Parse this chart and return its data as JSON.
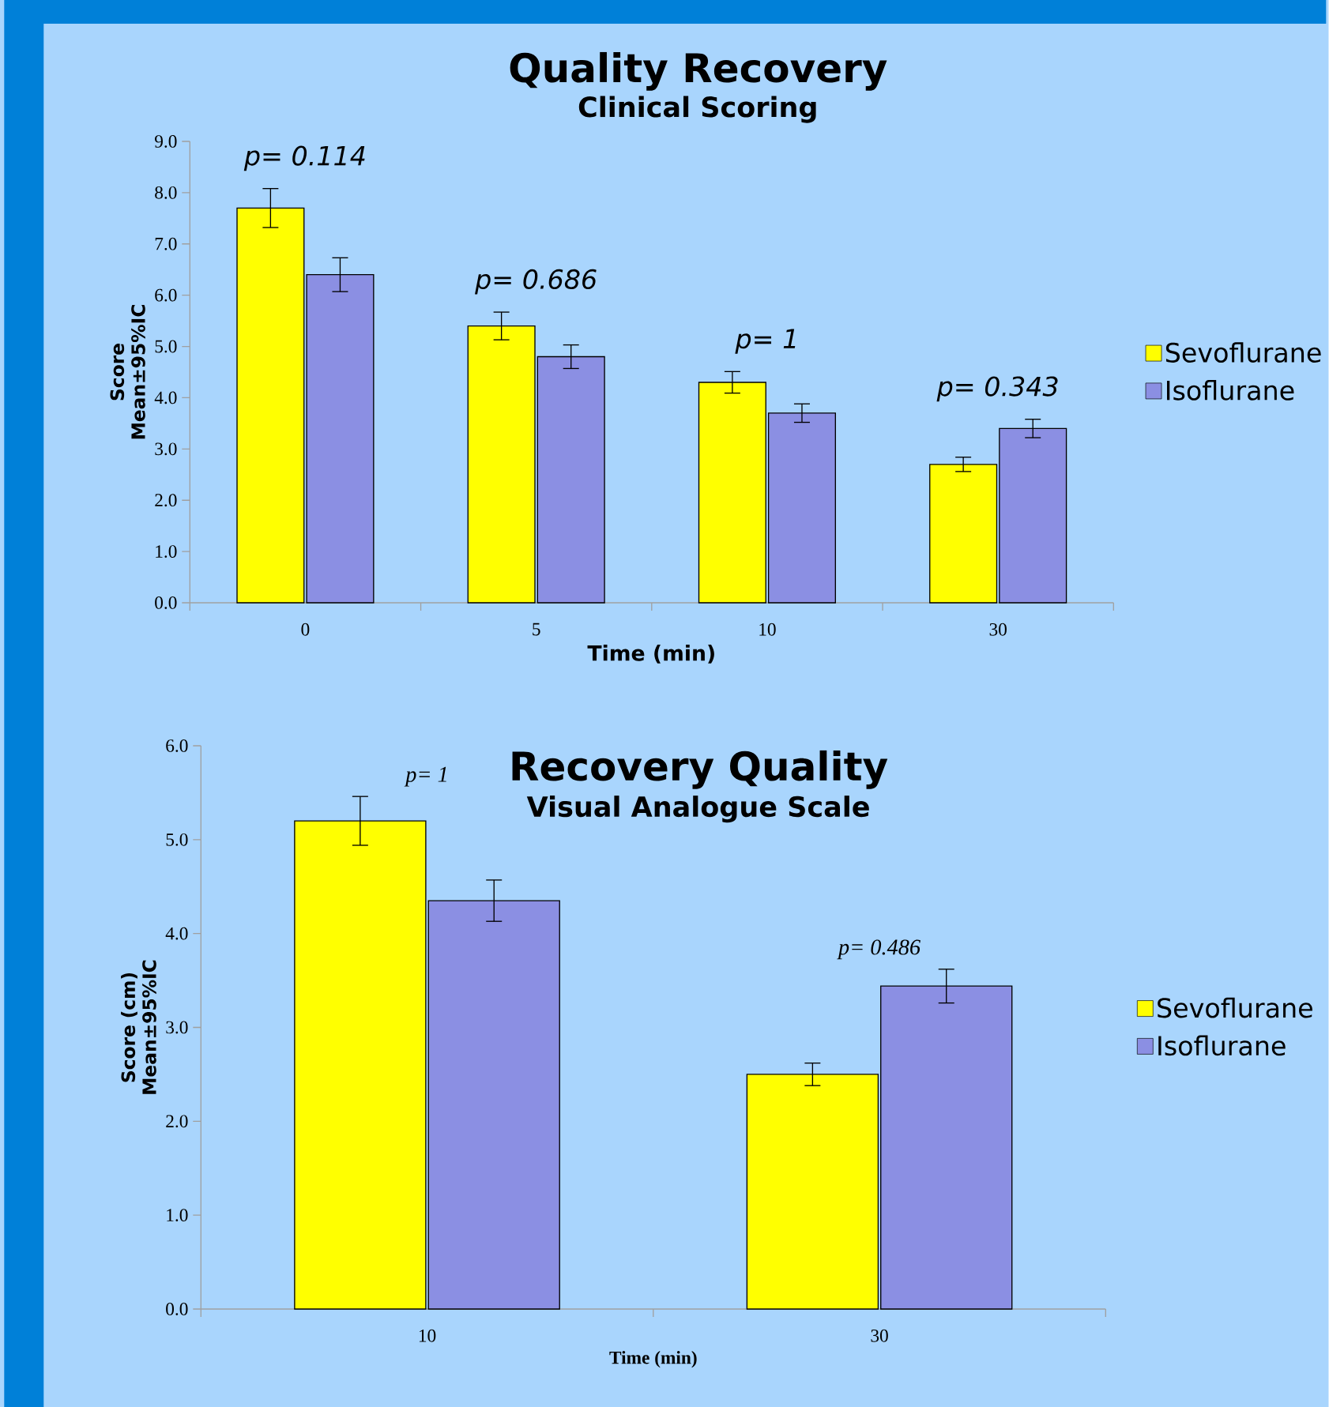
{
  "chart_data": [
    {
      "type": "bar",
      "title": "Quality Recovery",
      "subtitle": "Clinical Scoring",
      "xlabel": "Time (min)",
      "ylabel": "Score Mean±95%IC",
      "categories": [
        "0",
        "5",
        "10",
        "30"
      ],
      "series": [
        {
          "name": "Sevoflurane",
          "color": "#ffff00",
          "values": [
            7.7,
            5.4,
            4.3,
            2.7
          ],
          "errors": [
            0.38,
            0.27,
            0.21,
            0.14
          ]
        },
        {
          "name": "Isoflurane",
          "color": "#8b8fe3",
          "values": [
            6.4,
            4.8,
            3.7,
            3.4
          ],
          "errors": [
            0.33,
            0.23,
            0.18,
            0.18
          ]
        }
      ],
      "ylim": [
        0,
        9
      ],
      "yticks": [
        {
          "value": 0,
          "label": "0.0"
        },
        {
          "value": 1,
          "label": "1.0"
        },
        {
          "value": 2,
          "label": "2.0"
        },
        {
          "value": 3,
          "label": "3.0"
        },
        {
          "value": 4,
          "label": "4.0"
        },
        {
          "value": 5,
          "label": "5.0"
        },
        {
          "value": 6,
          "label": "6.0"
        },
        {
          "value": 7,
          "label": "7.0"
        },
        {
          "value": 8,
          "label": "8.0"
        },
        {
          "value": 9,
          "label": "9.0"
        }
      ],
      "annotations": [
        "p= 0.114",
        "p= 0.686",
        "p= 1",
        "p= 0.343"
      ],
      "legend": "right",
      "grid": false
    },
    {
      "type": "bar",
      "title": "Recovery Quality",
      "subtitle": "Visual Analogue Scale",
      "xlabel": "Time (min)",
      "ylabel": "Score (cm) Mean±95%IC",
      "categories": [
        "10",
        "30"
      ],
      "series": [
        {
          "name": "Sevoflurane",
          "color": "#ffff00",
          "values": [
            5.2,
            2.5
          ],
          "errors": [
            0.26,
            0.12
          ]
        },
        {
          "name": "Isoflurane",
          "color": "#8b8fe3",
          "values": [
            4.35,
            3.44
          ],
          "errors": [
            0.22,
            0.18
          ]
        }
      ],
      "ylim": [
        0,
        6
      ],
      "yticks": [
        {
          "value": 0,
          "label": "0.0"
        },
        {
          "value": 1,
          "label": "1.0"
        },
        {
          "value": 2,
          "label": "2.0"
        },
        {
          "value": 3,
          "label": "3.0"
        },
        {
          "value": 4,
          "label": "4.0"
        },
        {
          "value": 5,
          "label": "5.0"
        },
        {
          "value": 6,
          "label": "6.0"
        }
      ],
      "annotations": [
        "p= 1",
        "p= 0.486"
      ],
      "legend": "right",
      "grid": false
    }
  ]
}
